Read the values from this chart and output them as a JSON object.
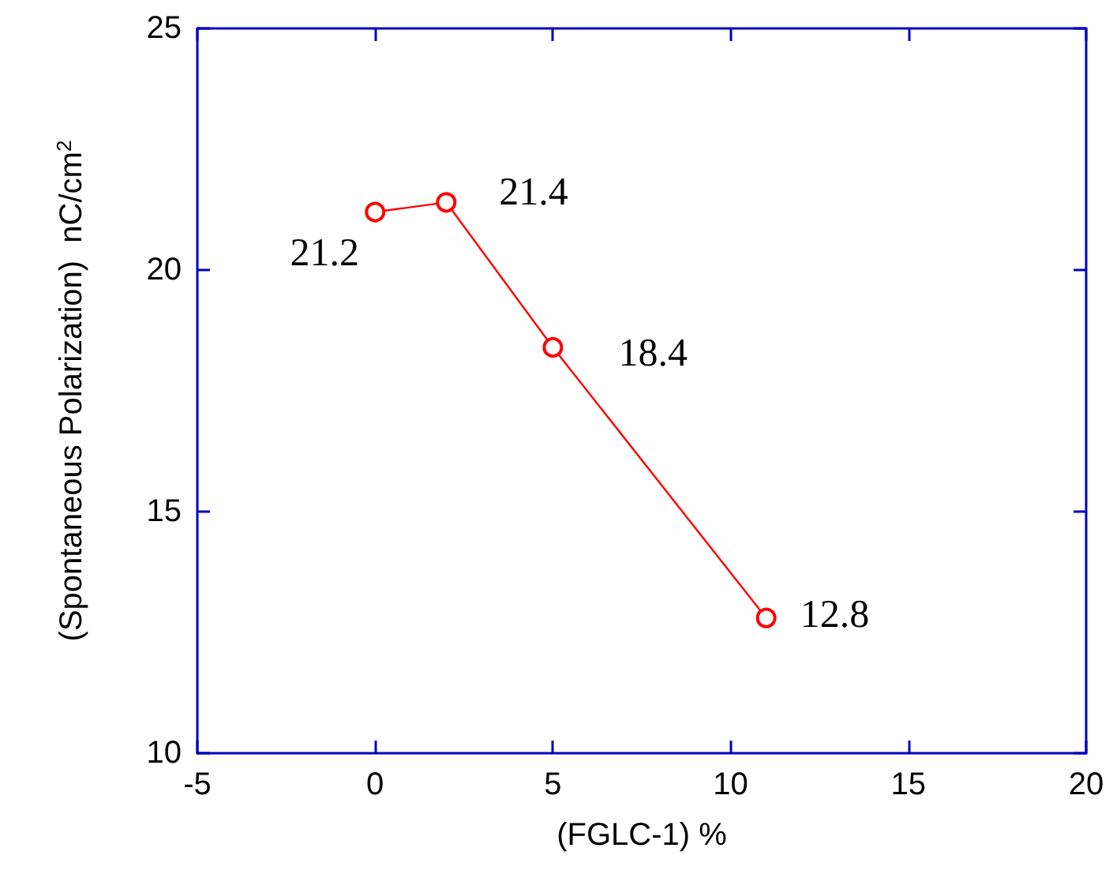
{
  "chart_data": {
    "type": "line",
    "xlabel": "(FGLC-1) %",
    "ylabel": "(Spontaneous Polarization)  nC/cm$^{2}$",
    "x": [
      0,
      2,
      5,
      11
    ],
    "series": [
      {
        "color": "#ff0000",
        "values": [
          21.2,
          21.4,
          18.4,
          12.8
        ]
      }
    ],
    "xlim": [
      -5,
      20
    ],
    "xticks": [
      -5,
      0,
      5,
      10,
      15,
      20
    ],
    "ylim": [
      10,
      25
    ],
    "yticks": [
      10,
      15,
      20,
      25
    ],
    "data_labels": true,
    "marker": "circle",
    "line_style": "solid"
  }
}
